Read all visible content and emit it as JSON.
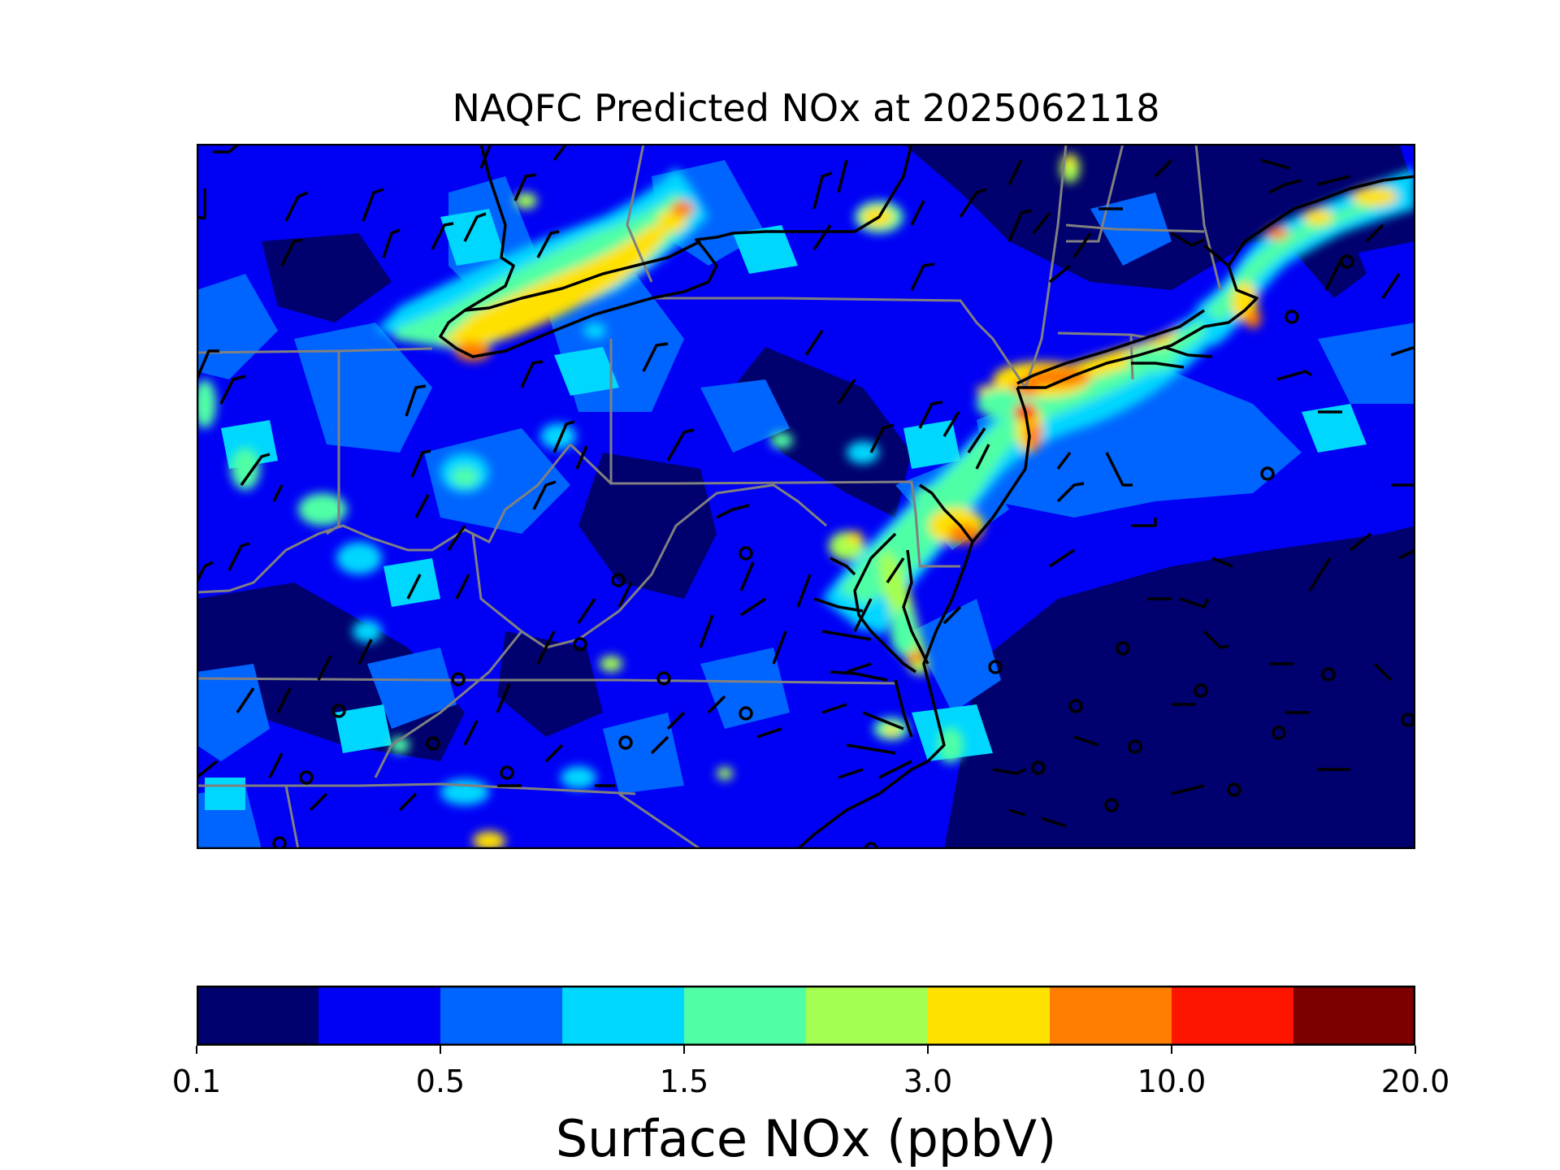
{
  "title": "NAQFC Predicted NOx at 2025062118",
  "colorbar": {
    "label": "Surface NOx (ppbV)",
    "tick_labels": [
      "0.1",
      "0.5",
      "1.5",
      "3.0",
      "10.0",
      "20.0"
    ],
    "tick_bin_index": [
      0,
      2,
      4,
      6,
      8,
      10
    ],
    "bins": 10,
    "colors": [
      "#00006e",
      "#0000f5",
      "#0064ff",
      "#00d7ff",
      "#50ffa5",
      "#a5ff50",
      "#ffe100",
      "#ff7d00",
      "#ff1400",
      "#7d0000"
    ]
  },
  "map": {
    "field": "Surface NOx",
    "units": "ppbV",
    "features": [
      "state-borders",
      "coastline",
      "wind-barbs",
      "calm-wind-circles"
    ],
    "colors": {
      "border": "#808080",
      "coast": "#000000",
      "barb": "#000000"
    }
  }
}
